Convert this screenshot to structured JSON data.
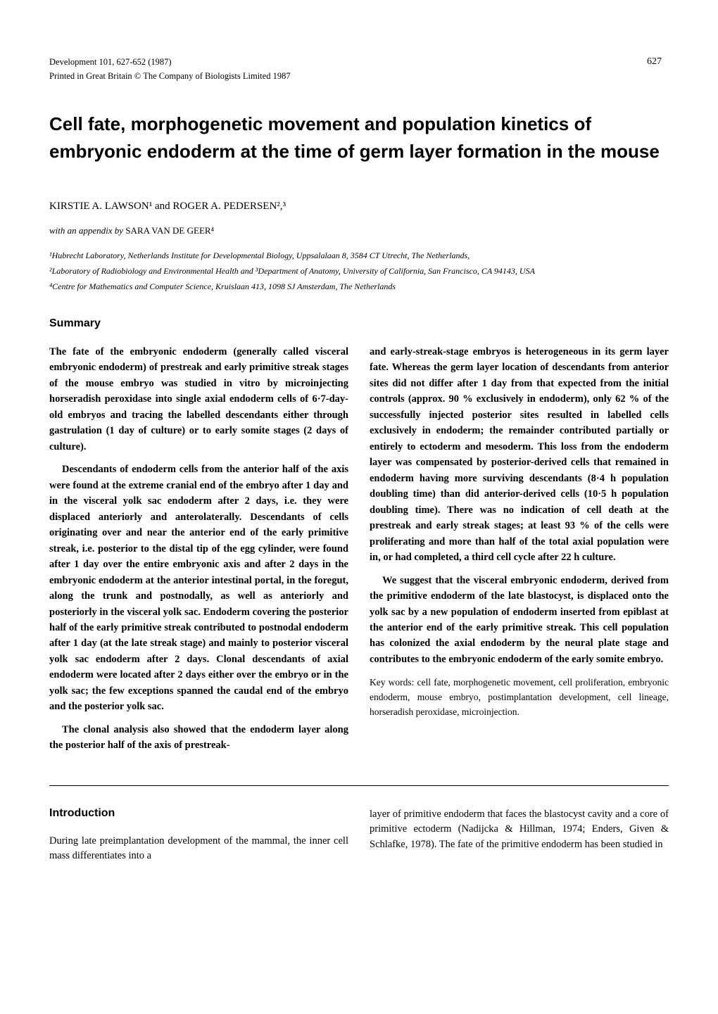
{
  "journal": {
    "line1": "Development 101, 627-652 (1987)",
    "line2": "Printed in Great Britain © The Company of Biologists Limited 1987",
    "page_number": "627"
  },
  "title": "Cell fate, morphogenetic movement and population kinetics of embryonic endoderm at the time of germ layer formation in the mouse",
  "authors": "KIRSTIE A. LAWSON¹ and ROGER A. PEDERSEN²,³",
  "appendix_prefix": "with an appendix by ",
  "appendix_author": "SARA VAN DE GEER⁴",
  "affiliations": [
    "¹Hubrecht Laboratory, Netherlands Institute for Developmental Biology, Uppsalalaan 8, 3584 CT Utrecht, The Netherlands,",
    "²Laboratory of Radiobiology and Environmental Health and ³Department of Anatomy, University of California, San Francisco, CA 94143, USA",
    "⁴Centre for Mathematics and Computer Science, Kruislaan 413, 1098 SJ Amsterdam, The Netherlands"
  ],
  "summary_heading": "Summary",
  "summary": {
    "left": [
      "The fate of the embryonic endoderm (generally called visceral embryonic endoderm) of prestreak and early primitive streak stages of the mouse embryo was studied in vitro by microinjecting horseradish peroxidase into single axial endoderm cells of 6·7-day-old embryos and tracing the labelled descendants either through gastrulation (1 day of culture) or to early somite stages (2 days of culture).",
      "Descendants of endoderm cells from the anterior half of the axis were found at the extreme cranial end of the embryo after 1 day and in the visceral yolk sac endoderm after 2 days, i.e. they were displaced anteriorly and anterolaterally. Descendants of cells originating over and near the anterior end of the early primitive streak, i.e. posterior to the distal tip of the egg cylinder, were found after 1 day over the entire embryonic axis and after 2 days in the embryonic endoderm at the anterior intestinal portal, in the foregut, along the trunk and postnodally, as well as anteriorly and posteriorly in the visceral yolk sac. Endoderm covering the posterior half of the early primitive streak contributed to postnodal endoderm after 1 day (at the late streak stage) and mainly to posterior visceral yolk sac endoderm after 2 days. Clonal descendants of axial endoderm were located after 2 days either over the embryo or in the yolk sac; the few exceptions spanned the caudal end of the embryo and the posterior yolk sac.",
      "The clonal analysis also showed that the endoderm layer along the posterior half of the axis of prestreak-"
    ],
    "right": [
      "and early-streak-stage embryos is heterogeneous in its germ layer fate. Whereas the germ layer location of descendants from anterior sites did not differ after 1 day from that expected from the initial controls (approx. 90 % exclusively in endoderm), only 62 % of the successfully injected posterior sites resulted in labelled cells exclusively in endoderm; the remainder contributed partially or entirely to ectoderm and mesoderm. This loss from the endoderm layer was compensated by posterior-derived cells that remained in endoderm having more surviving descendants (8·4 h population doubling time) than did anterior-derived cells (10·5 h population doubling time). There was no indication of cell death at the prestreak and early streak stages; at least 93 % of the cells were proliferating and more than half of the total axial population were in, or had completed, a third cell cycle after 22 h culture.",
      "We suggest that the visceral embryonic endoderm, derived from the primitive endoderm of the late blastocyst, is displaced onto the yolk sac by a new population of endoderm inserted from epiblast at the anterior end of the early primitive streak. This cell population has colonized the axial endoderm by the neural plate stage and contributes to the embryonic endoderm of the early somite embryo."
    ]
  },
  "keywords": "Key words: cell fate, morphogenetic movement, cell proliferation, embryonic endoderm, mouse embryo, postimplantation development, cell lineage, horseradish peroxidase, microinjection.",
  "intro_heading": "Introduction",
  "intro": {
    "left": "During late preimplantation development of the mammal, the inner cell mass differentiates into a",
    "right": "layer of primitive endoderm that faces the blastocyst cavity and a core of primitive ectoderm (Nadijcka & Hillman, 1974; Enders, Given & Schlafke, 1978). The fate of the primitive endoderm has been studied in"
  }
}
